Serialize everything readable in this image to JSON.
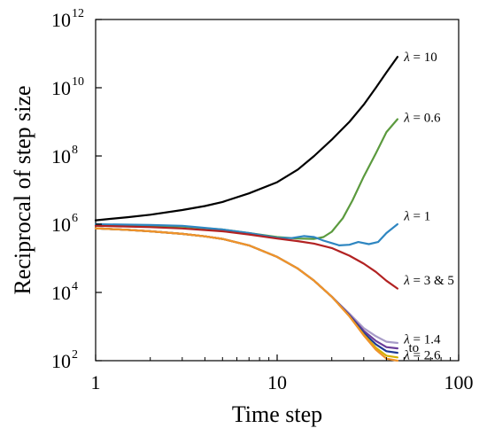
{
  "chart_data": {
    "type": "line",
    "xlabel": "Time step",
    "ylabel": "Reciprocal of step size",
    "x_scale": "log",
    "y_scale": "log",
    "xlim": [
      1,
      100
    ],
    "ylim": [
      100,
      1000000000000
    ],
    "x_ticks": [
      {
        "value": 1,
        "label": "1"
      },
      {
        "value": 10,
        "label": "10"
      },
      {
        "value": 100,
        "label": "100"
      }
    ],
    "y_ticks": [
      {
        "value": 100,
        "base": "10",
        "exp": "2"
      },
      {
        "value": 10000,
        "base": "10",
        "exp": "4"
      },
      {
        "value": 1000000,
        "base": "10",
        "exp": "6"
      },
      {
        "value": 100000000,
        "base": "10",
        "exp": "8"
      },
      {
        "value": 10000000000,
        "base": "10",
        "exp": "10"
      },
      {
        "value": 1000000000000,
        "base": "10",
        "exp": "12"
      }
    ],
    "grid": false,
    "legend": "none",
    "annotations": [
      {
        "id": "l10",
        "symbol": "λ",
        "text": " = 10",
        "x": 50,
        "y": 60000000000
      },
      {
        "id": "l06",
        "symbol": "λ",
        "text": " = 0.6",
        "x": 50,
        "y": 1000000000
      },
      {
        "id": "l1",
        "symbol": "λ",
        "text": " = 1",
        "x": 50,
        "y": 1300000
      },
      {
        "id": "l35",
        "symbol": "λ",
        "text": " = 3 & 5",
        "x": 50,
        "y": 17000
      },
      {
        "id": "l14",
        "symbol": "λ",
        "text": " = 1.4",
        "x": 50,
        "y": 320
      },
      {
        "id": "lto",
        "symbol": "",
        "text": "to",
        "x": 53,
        "y": 180
      },
      {
        "id": "l26",
        "symbol": "λ",
        "text": " = 2.6",
        "x": 50,
        "y": 110
      }
    ],
    "series": [
      {
        "color": "#000000",
        "x": [
          1,
          1.5,
          2,
          3,
          4,
          5,
          7,
          10,
          13,
          16,
          20,
          25,
          30,
          35,
          40,
          46
        ],
        "y": [
          1300000,
          1600000,
          1900000,
          2600000,
          3400000,
          4500000,
          8000000,
          17000000,
          40000000,
          100000000,
          300000000,
          1000000000,
          3200000000,
          10000000000,
          28000000000,
          80000000000
        ]
      },
      {
        "color": "#5b9a3e",
        "x": [
          1,
          2,
          3,
          5,
          7,
          10,
          13,
          16,
          18,
          20,
          23,
          26,
          30,
          35,
          40,
          46
        ],
        "y": [
          950000,
          900000,
          850000,
          700000,
          550000,
          420000,
          380000,
          370000,
          420000,
          600000,
          1500000,
          5000000,
          25000000,
          120000000,
          500000000,
          1200000000
        ]
      },
      {
        "color": "#2e86c1",
        "x": [
          1,
          2,
          3,
          5,
          7,
          10,
          12,
          14,
          16,
          18,
          20,
          22,
          25,
          28,
          32,
          36,
          40,
          46
        ],
        "y": [
          1000000,
          950000,
          900000,
          700000,
          550000,
          400000,
          390000,
          450000,
          420000,
          330000,
          280000,
          240000,
          250000,
          300000,
          260000,
          300000,
          550000,
          1000000
        ]
      },
      {
        "color": "#b22222",
        "x": [
          1,
          2,
          3,
          5,
          7,
          10,
          13,
          16,
          20,
          25,
          30,
          35,
          40,
          46
        ],
        "y": [
          900000,
          820000,
          750000,
          620000,
          500000,
          380000,
          320000,
          270000,
          200000,
          120000,
          70000,
          40000,
          22000,
          13000
        ]
      },
      {
        "color": "#a89cc8",
        "x": [
          1,
          1.5,
          2,
          3,
          4,
          5,
          7,
          10,
          13,
          16,
          20,
          25,
          30,
          35,
          40,
          46
        ],
        "y": [
          760000,
          680000,
          620000,
          520000,
          440000,
          370000,
          240000,
          110000,
          50000,
          22000,
          7500,
          2400,
          900,
          520,
          360,
          330
        ]
      },
      {
        "color": "#6a3d9a",
        "x": [
          1,
          1.5,
          2,
          3,
          4,
          5,
          7,
          10,
          13,
          16,
          20,
          25,
          30,
          35,
          40,
          46
        ],
        "y": [
          760000,
          680000,
          620000,
          520000,
          440000,
          370000,
          240000,
          110000,
          50000,
          22000,
          7500,
          2200,
          750,
          380,
          250,
          230
        ]
      },
      {
        "color": "#1f3a93",
        "x": [
          1,
          1.5,
          2,
          3,
          4,
          5,
          7,
          10,
          13,
          16,
          20,
          25,
          30,
          35,
          40,
          46
        ],
        "y": [
          760000,
          680000,
          620000,
          520000,
          440000,
          370000,
          240000,
          110000,
          50000,
          22000,
          7500,
          2100,
          650,
          300,
          190,
          170
        ]
      },
      {
        "color": "#d4b000",
        "x": [
          1,
          1.5,
          2,
          3,
          4,
          5,
          7,
          10,
          13,
          16,
          20,
          25,
          30,
          35,
          40,
          46
        ],
        "y": [
          760000,
          680000,
          620000,
          520000,
          440000,
          370000,
          240000,
          110000,
          50000,
          22000,
          7500,
          2000,
          580,
          240,
          140,
          125
        ]
      },
      {
        "color": "#f0922b",
        "x": [
          1,
          1.5,
          2,
          3,
          4,
          5,
          7,
          10,
          13,
          16,
          20,
          25,
          30,
          35,
          40,
          46
        ],
        "y": [
          760000,
          680000,
          620000,
          520000,
          440000,
          370000,
          240000,
          110000,
          50000,
          22000,
          7500,
          2000,
          550,
          210,
          115,
          100
        ]
      }
    ]
  }
}
